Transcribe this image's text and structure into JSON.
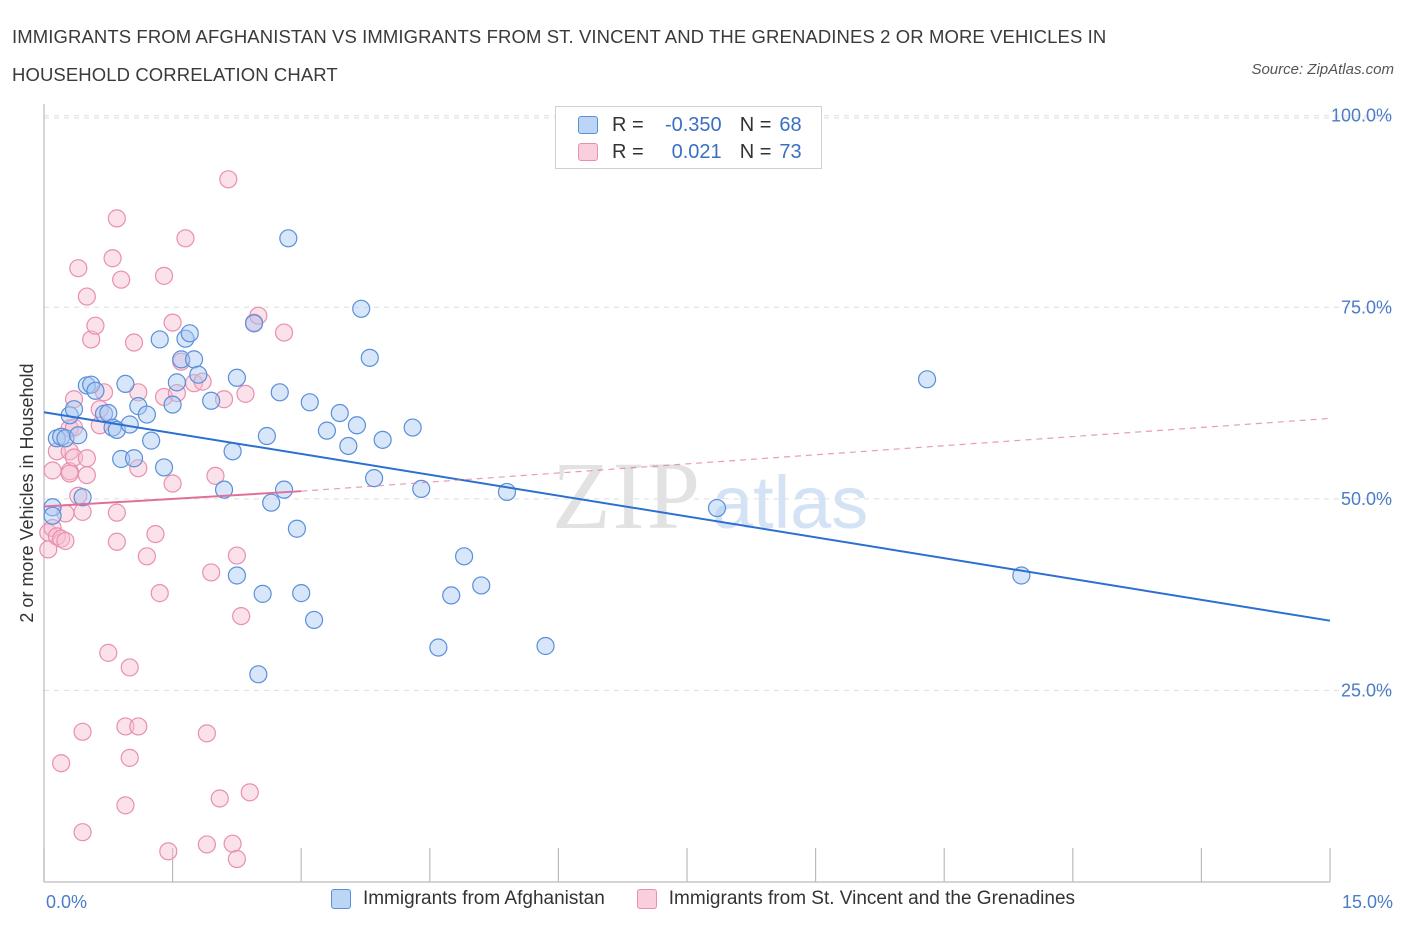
{
  "title": "IMMIGRANTS FROM AFGHANISTAN VS IMMIGRANTS FROM ST. VINCENT AND THE GRENADINES 2 OR MORE VEHICLES IN HOUSEHOLD CORRELATION CHART",
  "source": "Source: ZipAtlas.com",
  "watermark": {
    "zip": "ZIP",
    "atlas": "atlas"
  },
  "colors": {
    "blue_fill": "#a9c8f2",
    "blue_stroke": "#5a8fd9",
    "blue_line": "#2b6fcf",
    "pink_fill": "#f6bcd0",
    "pink_stroke": "#e890ae",
    "pink_line": "#e0709a",
    "tick_text": "#4a7cc7",
    "grid": "#dddddd"
  },
  "legend": {
    "rows": [
      {
        "r_label": "R =",
        "r_value": "-0.350",
        "n_label": "N =",
        "n_value": "68"
      },
      {
        "r_label": "R =",
        "r_value": "0.021",
        "n_label": "N =",
        "n_value": "73"
      }
    ]
  },
  "chart_data": {
    "type": "scatter",
    "xlabel": "",
    "ylabel": "2 or more Vehicles in Household",
    "xlim": [
      0,
      15
    ],
    "ylim": [
      0,
      100
    ],
    "x_tick_labels": [
      "0.0%",
      "15.0%"
    ],
    "y_tick_labels": [
      "100.0%",
      "75.0%",
      "50.0%",
      "25.0%"
    ],
    "y_tick_values": [
      100,
      75,
      50,
      25
    ],
    "grid": true,
    "legend_position": "bottom",
    "series": [
      {
        "name": "Immigrants from Afghanistan",
        "color": "blue",
        "trend": {
          "x": [
            0.0,
            15.0
          ],
          "y": [
            61.3,
            34.1
          ],
          "style": "solid"
        },
        "points": [
          [
            0.1,
            48.9
          ],
          [
            0.1,
            47.8
          ],
          [
            0.15,
            57.9
          ],
          [
            0.2,
            58.1
          ],
          [
            0.25,
            57.9
          ],
          [
            0.3,
            60.9
          ],
          [
            0.35,
            61.7
          ],
          [
            0.4,
            58.3
          ],
          [
            0.5,
            64.8
          ],
          [
            0.55,
            64.9
          ],
          [
            0.6,
            64.1
          ],
          [
            0.7,
            61.1
          ],
          [
            0.75,
            61.2
          ],
          [
            0.8,
            59.3
          ],
          [
            0.85,
            59.0
          ],
          [
            0.9,
            55.2
          ],
          [
            0.95,
            65.0
          ],
          [
            1.0,
            59.7
          ],
          [
            1.05,
            55.3
          ],
          [
            1.1,
            62.1
          ],
          [
            1.2,
            61.0
          ],
          [
            1.25,
            57.6
          ],
          [
            1.35,
            70.8
          ],
          [
            1.4,
            54.1
          ],
          [
            1.5,
            62.3
          ],
          [
            1.55,
            65.2
          ],
          [
            1.6,
            68.2
          ],
          [
            1.65,
            70.9
          ],
          [
            1.7,
            71.6
          ],
          [
            1.75,
            68.2
          ],
          [
            1.8,
            66.2
          ],
          [
            1.95,
            62.8
          ],
          [
            2.1,
            51.2
          ],
          [
            2.2,
            56.2
          ],
          [
            2.25,
            40.0
          ],
          [
            2.25,
            65.8
          ],
          [
            2.45,
            72.9
          ],
          [
            2.5,
            27.1
          ],
          [
            2.55,
            37.6
          ],
          [
            2.6,
            58.2
          ],
          [
            2.65,
            49.5
          ],
          [
            2.75,
            63.9
          ],
          [
            2.8,
            51.2
          ],
          [
            2.85,
            84.0
          ],
          [
            2.95,
            46.1
          ],
          [
            3.0,
            37.7
          ],
          [
            3.15,
            34.2
          ],
          [
            3.1,
            62.6
          ],
          [
            3.3,
            58.9
          ],
          [
            3.45,
            61.2
          ],
          [
            3.55,
            56.9
          ],
          [
            3.7,
            74.8
          ],
          [
            3.8,
            68.4
          ],
          [
            3.65,
            59.6
          ],
          [
            3.85,
            52.7
          ],
          [
            3.95,
            57.7
          ],
          [
            4.3,
            59.3
          ],
          [
            4.4,
            51.3
          ],
          [
            4.6,
            30.6
          ],
          [
            4.75,
            37.4
          ],
          [
            4.9,
            42.5
          ],
          [
            5.1,
            38.7
          ],
          [
            5.4,
            50.9
          ],
          [
            5.85,
            30.8
          ],
          [
            7.85,
            48.8
          ],
          [
            10.3,
            65.6
          ],
          [
            11.4,
            40.0
          ],
          [
            0.45,
            50.2
          ]
        ]
      },
      {
        "name": "Immigrants from St. Vincent and the Grenadines",
        "color": "pink",
        "trend": {
          "x": [
            0.0,
            3.0
          ],
          "y": [
            49.0,
            51.0
          ],
          "style": "solid",
          "dashed_extension": {
            "x": [
              3.0,
              15.0
            ],
            "y": [
              51.0,
              60.5
            ]
          }
        },
        "points": [
          [
            0.05,
            45.6
          ],
          [
            0.05,
            43.4
          ],
          [
            0.1,
            46.2
          ],
          [
            0.1,
            53.7
          ],
          [
            0.15,
            56.2
          ],
          [
            0.15,
            45.1
          ],
          [
            0.2,
            15.5
          ],
          [
            0.2,
            44.8
          ],
          [
            0.25,
            44.5
          ],
          [
            0.25,
            48.1
          ],
          [
            0.3,
            53.6
          ],
          [
            0.3,
            53.3
          ],
          [
            0.3,
            59.2
          ],
          [
            0.3,
            56.2
          ],
          [
            0.35,
            63.0
          ],
          [
            0.35,
            59.3
          ],
          [
            0.35,
            55.4
          ],
          [
            0.4,
            50.4
          ],
          [
            0.4,
            80.1
          ],
          [
            0.45,
            19.6
          ],
          [
            0.45,
            6.5
          ],
          [
            0.45,
            48.3
          ],
          [
            0.5,
            76.4
          ],
          [
            0.5,
            55.3
          ],
          [
            0.5,
            53.1
          ],
          [
            0.55,
            70.8
          ],
          [
            0.6,
            72.6
          ],
          [
            0.65,
            59.6
          ],
          [
            0.65,
            61.7
          ],
          [
            0.7,
            63.9
          ],
          [
            0.75,
            29.9
          ],
          [
            0.8,
            81.4
          ],
          [
            0.85,
            86.6
          ],
          [
            0.85,
            44.4
          ],
          [
            0.85,
            48.2
          ],
          [
            0.9,
            78.6
          ],
          [
            0.95,
            20.3
          ],
          [
            0.95,
            10.0
          ],
          [
            1.0,
            28.0
          ],
          [
            1.0,
            16.2
          ],
          [
            1.05,
            70.4
          ],
          [
            1.1,
            63.9
          ],
          [
            1.1,
            54.0
          ],
          [
            1.1,
            20.3
          ],
          [
            1.2,
            42.5
          ],
          [
            1.3,
            45.4
          ],
          [
            1.35,
            37.7
          ],
          [
            1.4,
            79.1
          ],
          [
            1.4,
            63.3
          ],
          [
            1.45,
            4.0
          ],
          [
            1.5,
            73.0
          ],
          [
            1.55,
            63.8
          ],
          [
            1.6,
            67.9
          ],
          [
            1.65,
            84.0
          ],
          [
            1.75,
            65.1
          ],
          [
            1.85,
            65.3
          ],
          [
            1.9,
            19.4
          ],
          [
            1.9,
            4.9
          ],
          [
            1.95,
            40.4
          ],
          [
            2.0,
            53.0
          ],
          [
            2.05,
            10.9
          ],
          [
            2.1,
            63.0
          ],
          [
            2.15,
            91.7
          ],
          [
            2.2,
            5.0
          ],
          [
            2.25,
            42.6
          ],
          [
            2.3,
            34.7
          ],
          [
            2.25,
            3.0
          ],
          [
            2.4,
            11.7
          ],
          [
            2.35,
            63.7
          ],
          [
            2.45,
            73.0
          ],
          [
            2.5,
            73.9
          ],
          [
            2.8,
            71.7
          ],
          [
            1.5,
            52.0
          ]
        ]
      }
    ]
  },
  "bottom_legend": [
    "Immigrants from Afghanistan",
    "Immigrants from St. Vincent and the Grenadines"
  ]
}
